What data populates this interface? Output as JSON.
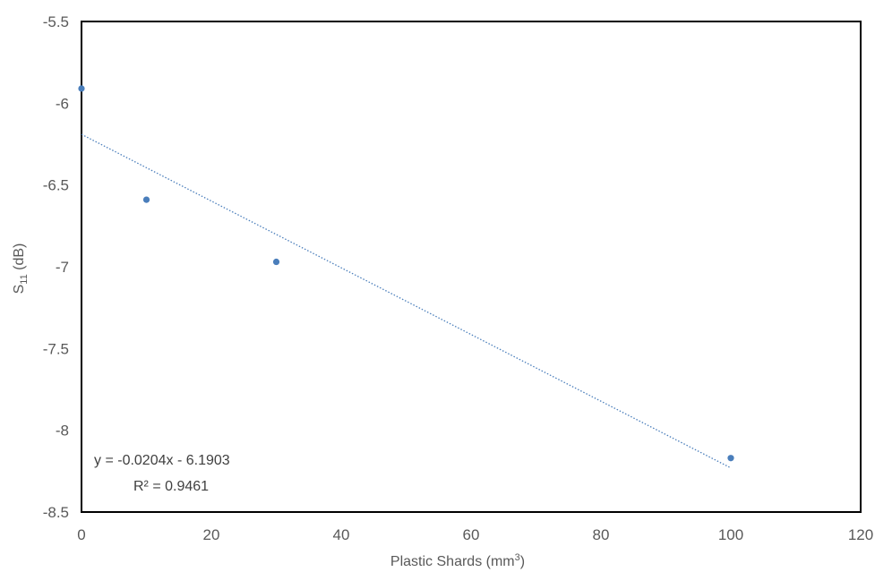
{
  "chart_data": {
    "type": "scatter",
    "title": "",
    "xlabel": "Plastic Shards (mm",
    "xlabel_sup": "3",
    "xlabel_end": ")",
    "ylabel": "S",
    "ylabel_sub": "11",
    "ylabel_end": " (dB)",
    "xlim": [
      0,
      120
    ],
    "ylim": [
      -8.5,
      -5.5
    ],
    "x_ticks": [
      "0",
      "20",
      "40",
      "60",
      "80",
      "100",
      "120"
    ],
    "y_ticks": [
      "-5.5",
      "-6",
      "-6.5",
      "-7",
      "-7.5",
      "-8",
      "-8.5"
    ],
    "grid": false,
    "marker_color": "#4a7ebb",
    "series": [
      {
        "x": [
          0,
          10,
          30,
          100
        ],
        "y": [
          -5.91,
          -6.59,
          -6.97,
          -8.17
        ]
      }
    ],
    "trendline": {
      "slope": -0.0204,
      "intercept": -6.1903,
      "x_range": [
        0,
        100
      ],
      "color": "#4a7ebb",
      "style": "dotted",
      "equation": "y = -0.0204x - 6.1903",
      "r2_label": "R² = 0.9461"
    }
  }
}
